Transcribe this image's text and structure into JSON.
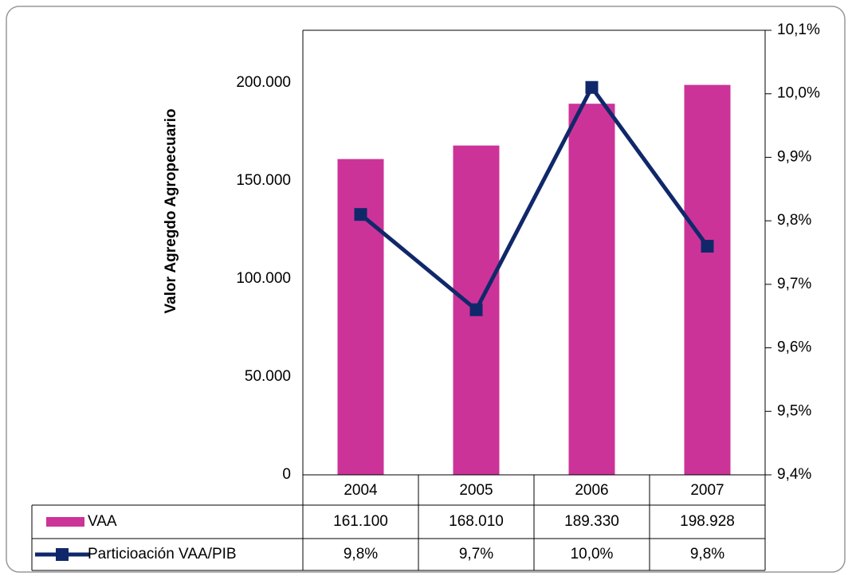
{
  "chart_data": {
    "type": "bar",
    "y_label": "Valor Agregdo  Agropecuario",
    "categories": [
      "2004",
      "2005",
      "2006",
      "2007"
    ],
    "series": [
      {
        "name": "VAA",
        "type": "bar",
        "color": "#cc3399",
        "values": [
          161100,
          168010,
          189330,
          198928
        ],
        "value_labels": [
          "161.100",
          "168.010",
          "189.330",
          "198.928"
        ]
      },
      {
        "name": "Particioación VAA/PIB",
        "type": "line",
        "axis": "y2",
        "color": "#10286a",
        "values": [
          9.81,
          9.66,
          10.01,
          9.76
        ],
        "value_labels": [
          "9,8%",
          "9,7%",
          "10,0%",
          "9,8%"
        ]
      }
    ],
    "ylim": [
      0,
      226800
    ],
    "yticks": [
      0,
      {
        "value": 50000,
        "label": "50.000"
      },
      {
        "value": 100000,
        "label": "100.000"
      },
      {
        "value": 150000,
        "label": "150.000"
      },
      {
        "value": 200000,
        "label": "200.000"
      }
    ],
    "y2lim": [
      9.4,
      10.1
    ],
    "y2ticks": [
      {
        "value": 9.4,
        "label": "9,4%"
      },
      {
        "value": 9.5,
        "label": "9,5%"
      },
      {
        "value": 9.6,
        "label": "9,6%"
      },
      {
        "value": 9.7,
        "label": "9,7%"
      },
      {
        "value": 9.8,
        "label": "9,8%"
      },
      {
        "value": 9.9,
        "label": "9,9%"
      },
      {
        "value": 10.0,
        "label": "10,0%"
      },
      {
        "value": 10.1,
        "label": "10,1%"
      }
    ],
    "data_table": true
  }
}
